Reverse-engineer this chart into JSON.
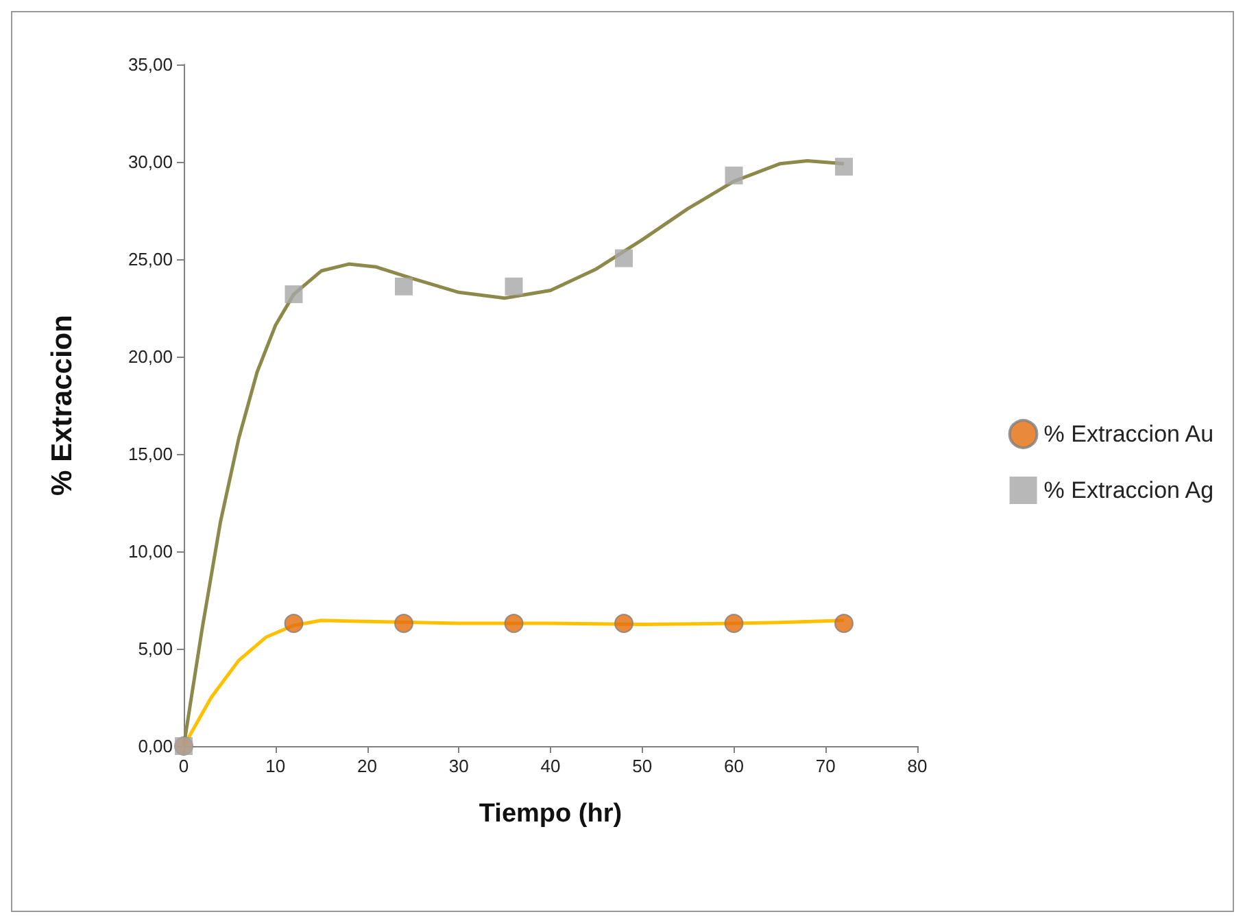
{
  "chart_data": {
    "type": "scatter",
    "xlabel": "Tiempo (hr)",
    "ylabel": "% Extraccion",
    "xlim": [
      0,
      80
    ],
    "xticks": [
      0,
      10,
      20,
      30,
      40,
      50,
      60,
      70,
      80
    ],
    "ylim": [
      0,
      35
    ],
    "yticks": [
      {
        "value": 0,
        "label": "0,00"
      },
      {
        "value": 5,
        "label": "5,00"
      },
      {
        "value": 10,
        "label": "10,00"
      },
      {
        "value": 15,
        "label": "15,00"
      },
      {
        "value": 20,
        "label": "20,00"
      },
      {
        "value": 25,
        "label": "25,00"
      },
      {
        "value": 30,
        "label": "30,00"
      },
      {
        "value": 35,
        "label": "35,00"
      }
    ],
    "grid": false,
    "legend": "right",
    "series": [
      {
        "type": "line",
        "color": "#8c8a4a",
        "line_style": "solid",
        "marker": "none",
        "x": [
          0,
          2,
          4,
          6,
          8,
          10,
          12,
          15,
          18,
          21,
          25,
          30,
          35,
          40,
          45,
          50,
          55,
          60,
          65,
          68,
          72
        ],
        "values": [
          0,
          6,
          11.5,
          15.8,
          19.2,
          21.6,
          23.2,
          24.4,
          24.75,
          24.6,
          24,
          23.3,
          23,
          23.4,
          24.5,
          26,
          27.6,
          29,
          29.9,
          30.05,
          29.9
        ]
      },
      {
        "type": "line",
        "color": "#ffc000",
        "line_style": "solid",
        "marker": "none",
        "x": [
          0,
          3,
          6,
          9,
          12,
          15,
          20,
          30,
          40,
          50,
          60,
          65,
          72
        ],
        "values": [
          0,
          2.5,
          4.4,
          5.6,
          6.2,
          6.45,
          6.4,
          6.3,
          6.3,
          6.25,
          6.3,
          6.35,
          6.45
        ]
      },
      {
        "name": "% Extraccion Au",
        "color": "#e36c0a",
        "marker": "circle",
        "x": [
          0,
          12,
          24,
          36,
          48,
          60,
          72
        ],
        "values": [
          0,
          6.3,
          6.3,
          6.3,
          6.3,
          6.3,
          6.3
        ]
      },
      {
        "name": "% Extraccion Ag",
        "color": "#a6a6a6",
        "marker": "square",
        "x": [
          0,
          12,
          24,
          36,
          48,
          60,
          72
        ],
        "values": [
          0,
          23.2,
          23.6,
          23.6,
          25.05,
          29.3,
          29.75
        ]
      }
    ]
  }
}
